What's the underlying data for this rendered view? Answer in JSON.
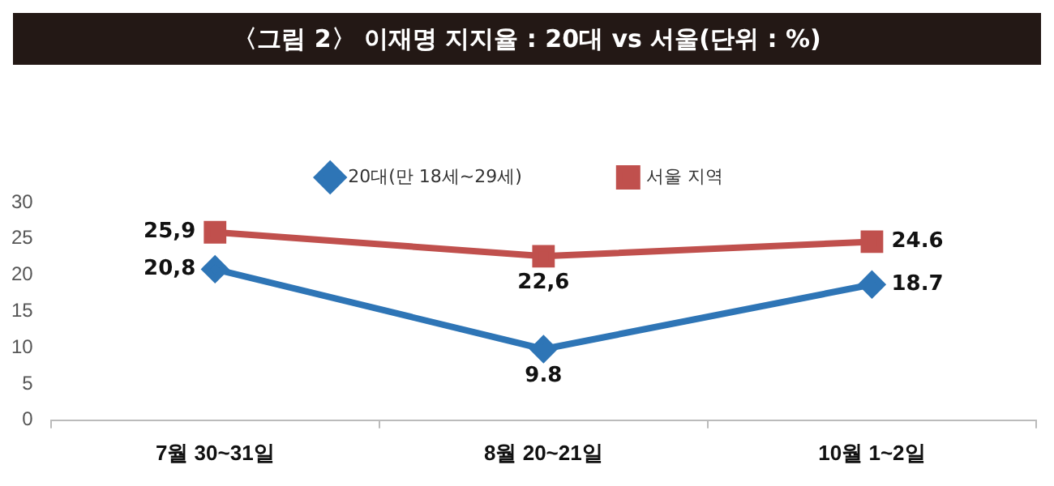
{
  "chart_data": {
    "type": "line",
    "title": "〈그림 2〉 이재명 지지율 : 20대 vs 서울(단위 : %)",
    "categories": [
      "7월 30~31일",
      "8월 20~21일",
      "10월 1~2일"
    ],
    "series": [
      {
        "name": "20대(만 18세~29세)",
        "color": "#2e75b6",
        "values": [
          20.8,
          9.8,
          18.7
        ],
        "value_labels": [
          "20,8",
          "9.8",
          "18.7"
        ],
        "marker": "diamond"
      },
      {
        "name": "서울 지역",
        "color": "#c0504d",
        "values": [
          25.9,
          22.6,
          24.6
        ],
        "value_labels": [
          "25,9",
          "22,6",
          "24.6"
        ],
        "marker": "square"
      }
    ],
    "ylim": [
      0,
      30
    ],
    "yticks": [
      0,
      5,
      10,
      15,
      20,
      25,
      30
    ],
    "grid": false,
    "legend": "top",
    "line_style": "solid"
  }
}
